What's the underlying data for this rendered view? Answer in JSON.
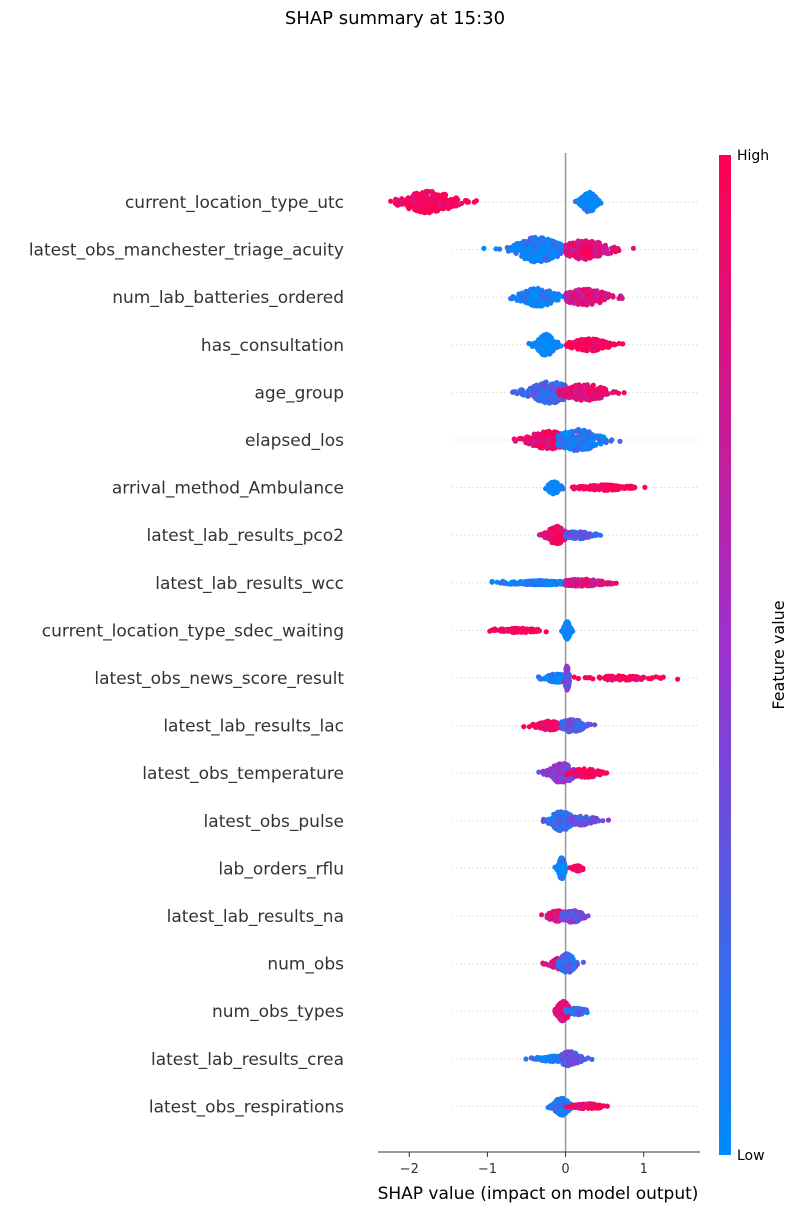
{
  "chart_data": {
    "type": "scatter",
    "subtype": "shap-beeswarm",
    "title": "SHAP summary at 15:30",
    "xlabel": "SHAP value (impact on model output)",
    "xlim": [
      -2.4,
      1.72
    ],
    "xticks": [
      -2,
      -1,
      0,
      1
    ],
    "xtick_labels": [
      "−2",
      "−1",
      "0",
      "1"
    ],
    "colorbar": {
      "title": "Feature value",
      "high_label": "High",
      "low_label": "Low",
      "low_color": "#008bfb",
      "high_color": "#ff0052"
    },
    "features": [
      {
        "name": "current_location_type_utc",
        "groups": [
          {
            "center": -1.75,
            "spread": 0.35,
            "halfwidth": 0.6,
            "min": -2.25,
            "max": -0.95,
            "color": 1.0,
            "n": 260
          },
          {
            "center": 0.3,
            "spread": 0.1,
            "halfwidth": 0.55,
            "min": 0.05,
            "max": 0.5,
            "color": 0.0,
            "n": 230
          }
        ]
      },
      {
        "name": "latest_obs_manchester_triage_acuity",
        "groups": [
          {
            "center": -0.35,
            "spread": 0.3,
            "halfwidth": 0.7,
            "min": -1.25,
            "max": 0.05,
            "color": 0.05,
            "n": 260
          },
          {
            "center": 0.25,
            "spread": 0.3,
            "halfwidth": 0.55,
            "min": 0.0,
            "max": 0.95,
            "color": 0.85,
            "n": 230
          }
        ]
      },
      {
        "name": "num_lab_batteries_ordered",
        "groups": [
          {
            "center": -0.35,
            "spread": 0.25,
            "halfwidth": 0.5,
            "min": -0.8,
            "max": 0.0,
            "color": 0.05,
            "n": 200
          },
          {
            "center": 0.25,
            "spread": 0.3,
            "halfwidth": 0.45,
            "min": 0.0,
            "max": 0.95,
            "color": 0.8,
            "n": 200
          }
        ]
      },
      {
        "name": "has_consultation",
        "groups": [
          {
            "center": -0.25,
            "spread": 0.12,
            "halfwidth": 0.6,
            "min": -0.55,
            "max": -0.05,
            "color": 0.0,
            "n": 200
          },
          {
            "center": 0.3,
            "spread": 0.25,
            "halfwidth": 0.35,
            "min": 0.0,
            "max": 1.22,
            "color": 1.0,
            "n": 210
          }
        ]
      },
      {
        "name": "age_group",
        "groups": [
          {
            "center": -0.2,
            "spread": 0.3,
            "halfwidth": 0.6,
            "min": -0.72,
            "max": 0.3,
            "color": 0.2,
            "n": 230
          },
          {
            "center": 0.25,
            "spread": 0.3,
            "halfwidth": 0.45,
            "min": -0.1,
            "max": 0.95,
            "color": 0.85,
            "n": 200
          }
        ]
      },
      {
        "name": "elapsed_los",
        "groups": [
          {
            "center": -0.2,
            "spread": 0.3,
            "halfwidth": 0.5,
            "min": -0.95,
            "max": 0.2,
            "color": 0.9,
            "n": 230
          },
          {
            "center": 0.15,
            "spread": 0.3,
            "halfwidth": 0.6,
            "min": -0.1,
            "max": 0.8,
            "color": 0.1,
            "n": 230
          }
        ]
      },
      {
        "name": "arrival_method_Ambulance",
        "groups": [
          {
            "center": -0.15,
            "spread": 0.08,
            "halfwidth": 0.35,
            "min": -0.3,
            "max": 0.0,
            "color": 0.0,
            "n": 110
          },
          {
            "center": 0.5,
            "spread": 0.3,
            "halfwidth": 0.15,
            "min": 0.05,
            "max": 1.15,
            "color": 1.0,
            "n": 160
          }
        ]
      },
      {
        "name": "latest_lab_results_pco2",
        "groups": [
          {
            "center": -0.12,
            "spread": 0.12,
            "halfwidth": 0.5,
            "min": -0.5,
            "max": 0.0,
            "color": 0.9,
            "n": 160
          },
          {
            "center": 0.15,
            "spread": 0.2,
            "halfwidth": 0.2,
            "min": 0.0,
            "max": 0.58,
            "color": 0.25,
            "n": 120
          }
        ]
      },
      {
        "name": "latest_lab_results_wcc",
        "groups": [
          {
            "center": -0.3,
            "spread": 0.35,
            "halfwidth": 0.12,
            "min": -0.95,
            "max": 0.0,
            "color": 0.05,
            "n": 200
          },
          {
            "center": 0.2,
            "spread": 0.3,
            "halfwidth": 0.2,
            "min": 0.0,
            "max": 0.88,
            "color": 0.8,
            "n": 200
          }
        ]
      },
      {
        "name": "current_location_type_sdec_waiting",
        "groups": [
          {
            "center": -0.6,
            "spread": 0.25,
            "halfwidth": 0.12,
            "min": -1.08,
            "max": -0.15,
            "color": 1.0,
            "n": 140
          },
          {
            "center": 0.02,
            "spread": 0.04,
            "halfwidth": 0.5,
            "min": -0.05,
            "max": 0.1,
            "color": 0.0,
            "n": 140
          }
        ]
      },
      {
        "name": "latest_obs_news_score_result",
        "groups": [
          {
            "center": -0.1,
            "spread": 0.15,
            "halfwidth": 0.25,
            "min": -0.35,
            "max": 0.0,
            "color": 0.05,
            "n": 120
          },
          {
            "center": 0.02,
            "spread": 0.03,
            "halfwidth": 0.7,
            "min": -0.02,
            "max": 0.05,
            "color": 0.35,
            "n": 80
          },
          {
            "center": 0.7,
            "spread": 0.45,
            "halfwidth": 0.12,
            "min": 0.05,
            "max": 1.5,
            "color": 1.0,
            "n": 80
          }
        ]
      },
      {
        "name": "latest_lab_results_lac",
        "groups": [
          {
            "center": -0.2,
            "spread": 0.18,
            "halfwidth": 0.25,
            "min": -0.62,
            "max": 0.0,
            "color": 0.9,
            "n": 110
          },
          {
            "center": 0.08,
            "spread": 0.18,
            "halfwidth": 0.35,
            "min": -0.05,
            "max": 0.42,
            "color": 0.3,
            "n": 130
          }
        ]
      },
      {
        "name": "latest_obs_temperature",
        "groups": [
          {
            "center": -0.05,
            "spread": 0.18,
            "halfwidth": 0.55,
            "min": -0.38,
            "max": 0.2,
            "color": 0.45,
            "n": 200
          },
          {
            "center": 0.25,
            "spread": 0.2,
            "halfwidth": 0.25,
            "min": 0.0,
            "max": 0.75,
            "color": 0.95,
            "n": 70
          }
        ]
      },
      {
        "name": "latest_obs_pulse",
        "groups": [
          {
            "center": -0.05,
            "spread": 0.15,
            "halfwidth": 0.55,
            "min": -0.3,
            "max": 0.15,
            "color": 0.2,
            "n": 200
          },
          {
            "center": 0.2,
            "spread": 0.25,
            "halfwidth": 0.25,
            "min": 0.0,
            "max": 0.75,
            "color": 0.3,
            "n": 90
          }
        ]
      },
      {
        "name": "lab_orders_rflu",
        "groups": [
          {
            "center": -0.05,
            "spread": 0.04,
            "halfwidth": 0.6,
            "min": -0.2,
            "max": 0.03,
            "color": 0.0,
            "n": 160
          },
          {
            "center": 0.15,
            "spread": 0.06,
            "halfwidth": 0.15,
            "min": 0.05,
            "max": 0.24,
            "color": 1.0,
            "n": 50
          }
        ]
      },
      {
        "name": "latest_lab_results_na",
        "groups": [
          {
            "center": -0.1,
            "spread": 0.14,
            "halfwidth": 0.3,
            "min": -0.35,
            "max": 0.0,
            "color": 0.8,
            "n": 110
          },
          {
            "center": 0.08,
            "spread": 0.15,
            "halfwidth": 0.35,
            "min": -0.05,
            "max": 0.4,
            "color": 0.35,
            "n": 130
          }
        ]
      },
      {
        "name": "num_obs",
        "groups": [
          {
            "center": -0.08,
            "spread": 0.12,
            "halfwidth": 0.3,
            "min": -0.32,
            "max": 0.0,
            "color": 0.85,
            "n": 110
          },
          {
            "center": 0.02,
            "spread": 0.1,
            "halfwidth": 0.55,
            "min": -0.1,
            "max": 0.25,
            "color": 0.2,
            "n": 160
          }
        ]
      },
      {
        "name": "num_obs_types",
        "groups": [
          {
            "center": -0.03,
            "spread": 0.08,
            "halfwidth": 0.55,
            "min": -0.2,
            "max": 0.1,
            "color": 0.85,
            "n": 170
          },
          {
            "center": 0.15,
            "spread": 0.1,
            "halfwidth": 0.2,
            "min": 0.0,
            "max": 0.32,
            "color": 0.2,
            "n": 80
          }
        ]
      },
      {
        "name": "latest_lab_results_crea",
        "groups": [
          {
            "center": -0.15,
            "spread": 0.2,
            "halfwidth": 0.15,
            "min": -0.58,
            "max": 0.0,
            "color": 0.05,
            "n": 110
          },
          {
            "center": 0.05,
            "spread": 0.15,
            "halfwidth": 0.4,
            "min": -0.05,
            "max": 0.48,
            "color": 0.3,
            "n": 140
          }
        ]
      },
      {
        "name": "latest_obs_respirations",
        "groups": [
          {
            "center": -0.05,
            "spread": 0.1,
            "halfwidth": 0.5,
            "min": -0.25,
            "max": 0.1,
            "color": 0.1,
            "n": 160
          },
          {
            "center": 0.3,
            "spread": 0.2,
            "halfwidth": 0.15,
            "min": 0.0,
            "max": 0.75,
            "color": 0.95,
            "n": 70
          }
        ]
      }
    ]
  }
}
